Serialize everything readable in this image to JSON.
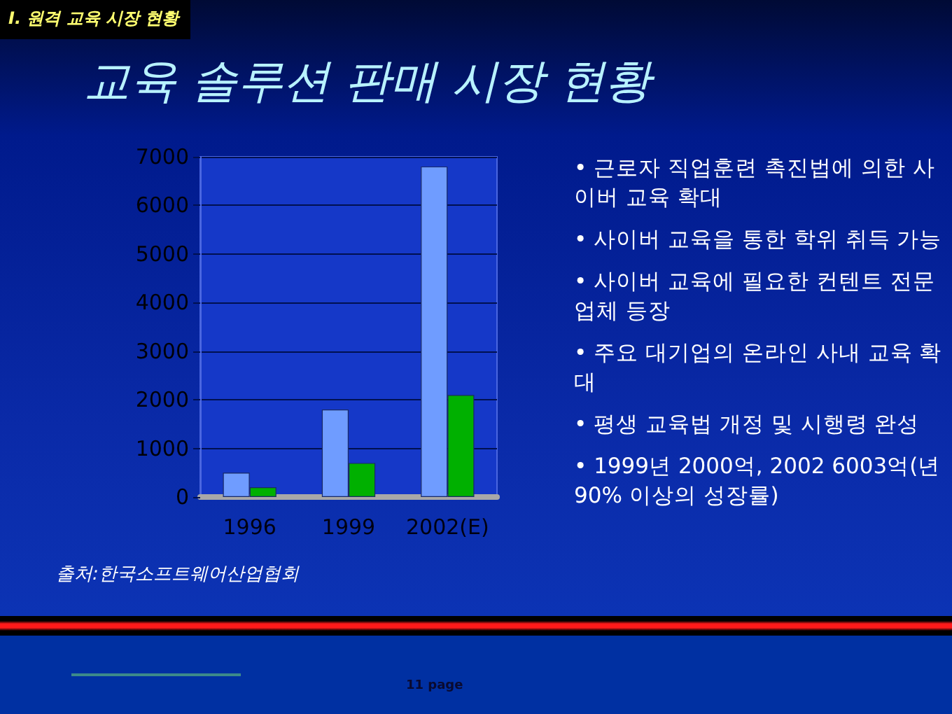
{
  "chart_data": {
    "type": "bar",
    "title": "교육 솔루션 판매 시장 현황",
    "categories": [
      "1996",
      "1999",
      "2002(E)"
    ],
    "series": [
      {
        "color": "#6f9cff",
        "values": [
          500,
          1800,
          6800
        ]
      },
      {
        "color": "#00b000",
        "values": [
          200,
          700,
          2100
        ]
      }
    ],
    "ylim": [
      0,
      7000
    ],
    "yticks": [
      0,
      1000,
      2000,
      3000,
      4000,
      5000,
      6000,
      7000
    ],
    "grid": "y",
    "annotations": [
      "I. 원격 교육 시장 현황",
      "• 근로자 직업훈련 촉진법에 의한 사이버 교육 확대",
      "• 사이버 교육을 통한 학위 취득 가능",
      "• 사이버 교육에 필요한 컨텐트 전문 업체 등장",
      "• 주요 대기업의 온라인 사내 교육 확대",
      "• 평생 교육법 개정 및 시행령 완성",
      "• 1999년 2000억, 2002 6003억(년 90% 이상의 성장률)",
      "출처:한국소프트웨어산업협회",
      "11 page"
    ]
  }
}
